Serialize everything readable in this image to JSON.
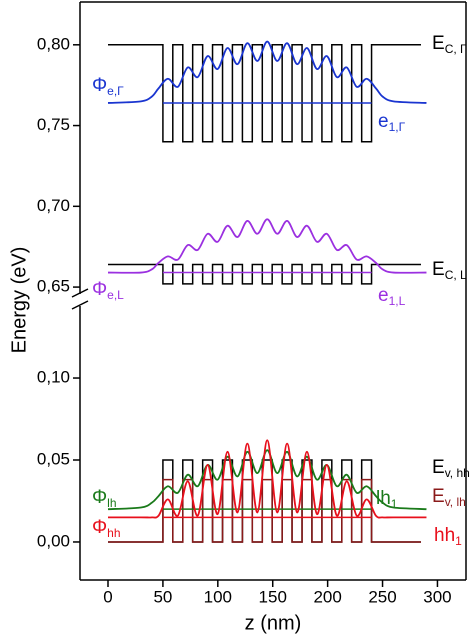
{
  "chart_data": [
    {
      "type": "line",
      "ylabel": "Energy (eV)",
      "ylim": [
        0.642,
        0.8265
      ],
      "yticks": [
        {
          "value": 0.65,
          "label": "0,65"
        },
        {
          "value": 0.7,
          "label": "0,70"
        },
        {
          "value": 0.75,
          "label": "0,75"
        },
        {
          "value": 0.8,
          "label": "0,80"
        }
      ],
      "series": [
        {
          "name": "E",
          "sub": "C, Γ",
          "color": "#000000",
          "smooth": false,
          "x": [
            0,
            50,
            50,
            59,
            59,
            68.1,
            68.1,
            77.1,
            77.1,
            86.2,
            86.2,
            95.2,
            95.2,
            104.3,
            104.3,
            113.3,
            113.3,
            122.4,
            122.4,
            131.4,
            131.4,
            140.5,
            140.5,
            149.5,
            149.5,
            158.6,
            158.6,
            167.6,
            167.6,
            176.7,
            176.7,
            185.7,
            185.7,
            194.8,
            194.8,
            203.8,
            203.8,
            212.9,
            212.9,
            221.9,
            221.9,
            231,
            231,
            240,
            240,
            285
          ],
          "values": [
            0.8,
            0.8,
            0.74,
            0.74,
            0.8,
            0.8,
            0.74,
            0.74,
            0.8,
            0.8,
            0.74,
            0.74,
            0.8,
            0.8,
            0.74,
            0.74,
            0.8,
            0.8,
            0.74,
            0.74,
            0.8,
            0.8,
            0.74,
            0.74,
            0.8,
            0.8,
            0.74,
            0.74,
            0.8,
            0.8,
            0.74,
            0.74,
            0.8,
            0.8,
            0.74,
            0.74,
            0.8,
            0.8,
            0.74,
            0.74,
            0.8,
            0.8,
            0.74,
            0.74,
            0.8,
            0.8
          ]
        },
        {
          "name": "Φ",
          "sub": "e,Γ",
          "color": "#1a35d0",
          "smooth": true,
          "x": [
            0,
            30,
            40,
            46,
            54.5,
            63.6,
            72.6,
            81.7,
            90.7,
            99.8,
            108.8,
            117.9,
            126.9,
            136,
            145,
            154.1,
            163.1,
            172.2,
            181.2,
            190.3,
            199.3,
            208.4,
            217.4,
            226.5,
            235.5,
            244,
            250,
            260,
            290
          ],
          "values": [
            0.764,
            0.765,
            0.768,
            0.773,
            0.779,
            0.774,
            0.786,
            0.78,
            0.793,
            0.785,
            0.798,
            0.788,
            0.801,
            0.79,
            0.802,
            0.79,
            0.801,
            0.788,
            0.798,
            0.785,
            0.793,
            0.78,
            0.786,
            0.774,
            0.779,
            0.773,
            0.768,
            0.765,
            0.764
          ]
        },
        {
          "name": "e",
          "sub": "1,Γ",
          "color": "#1a35d0",
          "smooth": false,
          "x": [
            50,
            240
          ],
          "values": [
            0.764,
            0.764
          ]
        },
        {
          "name": "E",
          "sub": "C, L",
          "color": "#000000",
          "smooth": false,
          "x": [
            0,
            50,
            50,
            59,
            59,
            68.1,
            68.1,
            77.1,
            77.1,
            86.2,
            86.2,
            95.2,
            95.2,
            104.3,
            104.3,
            113.3,
            113.3,
            122.4,
            122.4,
            131.4,
            131.4,
            140.5,
            140.5,
            149.5,
            149.5,
            158.6,
            158.6,
            167.6,
            167.6,
            176.7,
            176.7,
            185.7,
            185.7,
            194.8,
            194.8,
            203.8,
            203.8,
            212.9,
            212.9,
            221.9,
            221.9,
            231,
            231,
            240,
            240,
            285
          ],
          "values": [
            0.664,
            0.664,
            0.652,
            0.652,
            0.664,
            0.664,
            0.652,
            0.652,
            0.664,
            0.664,
            0.652,
            0.652,
            0.664,
            0.664,
            0.652,
            0.652,
            0.664,
            0.664,
            0.652,
            0.652,
            0.664,
            0.664,
            0.652,
            0.652,
            0.664,
            0.664,
            0.652,
            0.652,
            0.664,
            0.664,
            0.652,
            0.652,
            0.664,
            0.664,
            0.652,
            0.652,
            0.664,
            0.664,
            0.652,
            0.652,
            0.664,
            0.664,
            0.652,
            0.652,
            0.664,
            0.664
          ]
        },
        {
          "name": "Φ",
          "sub": "e,L",
          "color": "#9b30e0",
          "smooth": true,
          "x": [
            0,
            30,
            40,
            46,
            54.5,
            63.6,
            72.6,
            81.7,
            90.7,
            99.8,
            108.8,
            117.9,
            126.9,
            136,
            145,
            154.1,
            163.1,
            172.2,
            181.2,
            190.3,
            199.3,
            208.4,
            217.4,
            226.5,
            235.5,
            244,
            250,
            260,
            290
          ],
          "values": [
            0.659,
            0.659,
            0.661,
            0.665,
            0.669,
            0.667,
            0.676,
            0.673,
            0.683,
            0.678,
            0.688,
            0.681,
            0.691,
            0.683,
            0.692,
            0.683,
            0.691,
            0.681,
            0.688,
            0.678,
            0.683,
            0.673,
            0.676,
            0.667,
            0.669,
            0.665,
            0.661,
            0.659,
            0.659
          ]
        },
        {
          "name": "e",
          "sub": "1,L",
          "color": "#9b30e0",
          "smooth": false,
          "x": [
            50,
            240
          ],
          "values": [
            0.659,
            0.659
          ]
        }
      ]
    },
    {
      "type": "line",
      "xlabel": "z (nm)",
      "xlim": [
        -25.5,
        326
      ],
      "xticks": [
        0,
        50,
        100,
        150,
        200,
        250,
        300
      ],
      "ylim": [
        -0.0232,
        0.1476
      ],
      "yticks": [
        {
          "value": 0.0,
          "label": "0,00"
        },
        {
          "value": 0.05,
          "label": "0,05"
        },
        {
          "value": 0.1,
          "label": "0,10"
        }
      ],
      "series": [
        {
          "name": "E",
          "sub": "v, hh",
          "color": "#000000",
          "smooth": false,
          "x": [
            0,
            50,
            50,
            59,
            59,
            68.1,
            68.1,
            77.1,
            77.1,
            86.2,
            86.2,
            95.2,
            95.2,
            104.3,
            104.3,
            113.3,
            113.3,
            122.4,
            122.4,
            131.4,
            131.4,
            140.5,
            140.5,
            149.5,
            149.5,
            158.6,
            158.6,
            167.6,
            167.6,
            176.7,
            176.7,
            185.7,
            185.7,
            194.8,
            194.8,
            203.8,
            203.8,
            212.9,
            212.9,
            221.9,
            221.9,
            231,
            231,
            240,
            240,
            285
          ],
          "values": [
            0,
            0,
            0.05,
            0.05,
            0,
            0,
            0.05,
            0.05,
            0,
            0,
            0.05,
            0.05,
            0,
            0,
            0.05,
            0.05,
            0,
            0,
            0.05,
            0.05,
            0,
            0,
            0.05,
            0.05,
            0,
            0,
            0.05,
            0.05,
            0,
            0,
            0.05,
            0.05,
            0,
            0,
            0.05,
            0.05,
            0,
            0,
            0.05,
            0.05,
            0,
            0,
            0.05,
            0.05,
            0,
            0
          ]
        },
        {
          "name": "E",
          "sub": "v, lh",
          "color": "#8b1a1a",
          "smooth": false,
          "x": [
            0,
            50,
            50,
            59,
            59,
            68.1,
            68.1,
            77.1,
            77.1,
            86.2,
            86.2,
            95.2,
            95.2,
            104.3,
            104.3,
            113.3,
            113.3,
            122.4,
            122.4,
            131.4,
            131.4,
            140.5,
            140.5,
            149.5,
            149.5,
            158.6,
            158.6,
            167.6,
            167.6,
            176.7,
            176.7,
            185.7,
            185.7,
            194.8,
            194.8,
            203.8,
            203.8,
            212.9,
            212.9,
            221.9,
            221.9,
            231,
            231,
            240,
            240,
            285
          ],
          "values": [
            0,
            0,
            0.038,
            0.038,
            0,
            0,
            0.038,
            0.038,
            0,
            0,
            0.038,
            0.038,
            0,
            0,
            0.038,
            0.038,
            0,
            0,
            0.038,
            0.038,
            0,
            0,
            0.038,
            0.038,
            0,
            0,
            0.038,
            0.038,
            0,
            0,
            0.038,
            0.038,
            0,
            0,
            0.038,
            0.038,
            0,
            0,
            0.038,
            0.038,
            0,
            0,
            0.038,
            0.038,
            0,
            0
          ]
        },
        {
          "name": "Φ",
          "sub": "lh",
          "color": "#1a7a1a",
          "smooth": true,
          "x": [
            0,
            30,
            40,
            46,
            54.5,
            63.6,
            72.6,
            81.7,
            90.7,
            99.8,
            108.8,
            117.9,
            126.9,
            136,
            145,
            154.1,
            163.1,
            172.2,
            181.2,
            190.3,
            199.3,
            208.4,
            217.4,
            226.5,
            235.5,
            244,
            250,
            260,
            290
          ],
          "values": [
            0.02,
            0.021,
            0.024,
            0.028,
            0.034,
            0.03,
            0.041,
            0.034,
            0.047,
            0.038,
            0.052,
            0.04,
            0.055,
            0.042,
            0.056,
            0.042,
            0.055,
            0.04,
            0.052,
            0.038,
            0.047,
            0.034,
            0.041,
            0.03,
            0.034,
            0.028,
            0.024,
            0.021,
            0.02
          ]
        },
        {
          "name": "lh",
          "sub": "1",
          "color": "#1a7a1a",
          "smooth": false,
          "x": [
            50,
            240
          ],
          "values": [
            0.02,
            0.02
          ]
        },
        {
          "name": "Φ",
          "sub": "hh",
          "color": "#e8101c",
          "smooth": true,
          "x": [
            0,
            30,
            40,
            46,
            54.5,
            63.6,
            72.6,
            81.7,
            90.7,
            99.8,
            108.8,
            117.9,
            126.9,
            136,
            145,
            154.1,
            163.1,
            172.2,
            181.2,
            190.3,
            199.3,
            208.4,
            217.4,
            226.5,
            235.5,
            244,
            250,
            260,
            290
          ],
          "values": [
            0.015,
            0.015,
            0.015,
            0.016,
            0.026,
            0.016,
            0.037,
            0.016,
            0.047,
            0.017,
            0.055,
            0.018,
            0.06,
            0.018,
            0.062,
            0.018,
            0.06,
            0.018,
            0.055,
            0.017,
            0.047,
            0.016,
            0.037,
            0.016,
            0.026,
            0.016,
            0.015,
            0.015,
            0.015
          ]
        },
        {
          "name": "hh",
          "sub": "1",
          "color": "#e8101c",
          "smooth": false,
          "x": [
            50,
            240
          ],
          "values": [
            0.015,
            0.015
          ]
        }
      ]
    }
  ]
}
